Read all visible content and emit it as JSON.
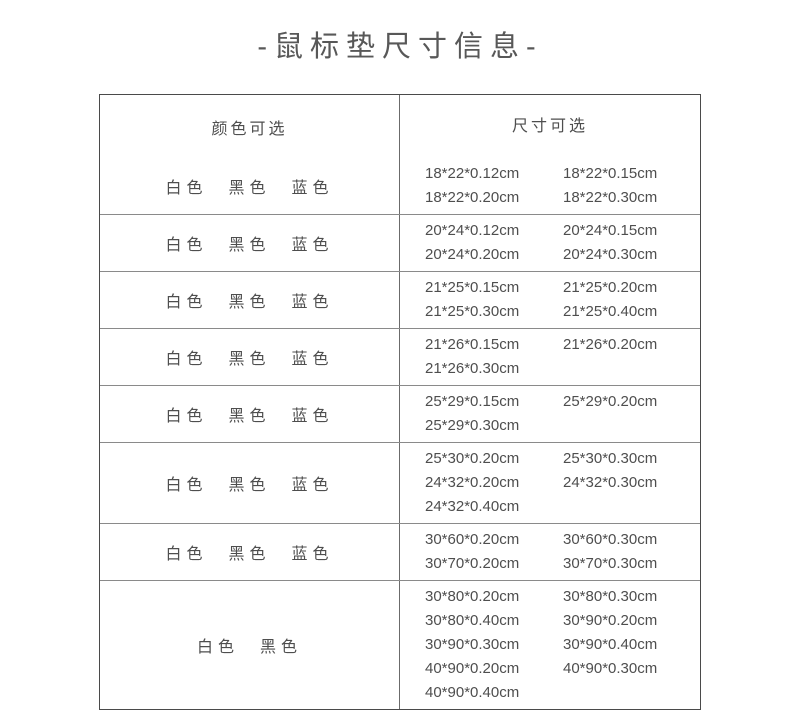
{
  "page": {
    "title": "-鼠标垫尺寸信息-"
  },
  "style": {
    "text_color": "#4e4e4e",
    "outer_border_color": "#4a4a4a",
    "inner_border_color": "#8a8a8a"
  },
  "table": {
    "headers": {
      "colors": "颜色可选",
      "sizes": "尺寸可选"
    },
    "rows": [
      {
        "colors": [
          "白色",
          "黑色",
          "蓝色"
        ],
        "sizes": [
          "18*22*0.12cm",
          "18*22*0.15cm",
          "18*22*0.20cm",
          "18*22*0.30cm"
        ]
      },
      {
        "colors": [
          "白色",
          "黑色",
          "蓝色"
        ],
        "sizes": [
          "20*24*0.12cm",
          "20*24*0.15cm",
          "20*24*0.20cm",
          "20*24*0.30cm"
        ]
      },
      {
        "colors": [
          "白色",
          "黑色",
          "蓝色"
        ],
        "sizes": [
          "21*25*0.15cm",
          "21*25*0.20cm",
          "21*25*0.30cm",
          "21*25*0.40cm"
        ]
      },
      {
        "colors": [
          "白色",
          "黑色",
          "蓝色"
        ],
        "sizes": [
          "21*26*0.15cm",
          "21*26*0.20cm",
          "21*26*0.30cm"
        ]
      },
      {
        "colors": [
          "白色",
          "黑色",
          "蓝色"
        ],
        "sizes": [
          "25*29*0.15cm",
          "25*29*0.20cm",
          "25*29*0.30cm"
        ]
      },
      {
        "colors": [
          "白色",
          "黑色",
          "蓝色"
        ],
        "sizes": [
          "25*30*0.20cm",
          "25*30*0.30cm",
          "24*32*0.20cm",
          "24*32*0.30cm",
          "24*32*0.40cm"
        ]
      },
      {
        "colors": [
          "白色",
          "黑色",
          "蓝色"
        ],
        "sizes": [
          "30*60*0.20cm",
          "30*60*0.30cm",
          "30*70*0.20cm",
          "30*70*0.30cm"
        ]
      },
      {
        "colors": [
          "白色",
          "黑色"
        ],
        "sizes": [
          "30*80*0.20cm",
          "30*80*0.30cm",
          "30*80*0.40cm",
          "30*90*0.20cm",
          "30*90*0.30cm",
          "30*90*0.40cm",
          "40*90*0.20cm",
          "40*90*0.30cm",
          "40*90*0.40cm"
        ]
      }
    ]
  }
}
